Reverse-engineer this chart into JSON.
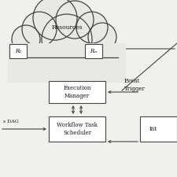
{
  "bg_color": "#f0f0ec",
  "resources_label": "Resources",
  "r0_label": "R₀",
  "rm_label": "Rₘ",
  "exec_label": "Execution\nManager",
  "wf_label": "Workflow Task\nScheduler",
  "int_label": "Int",
  "dag_label": "s DAG",
  "event_label": "Event\nTrigger",
  "text_color": "#111111",
  "box_edge_color": "#444444",
  "line_color": "#444444",
  "cloud_color": "#e8e8e4",
  "font_size": 5.0
}
